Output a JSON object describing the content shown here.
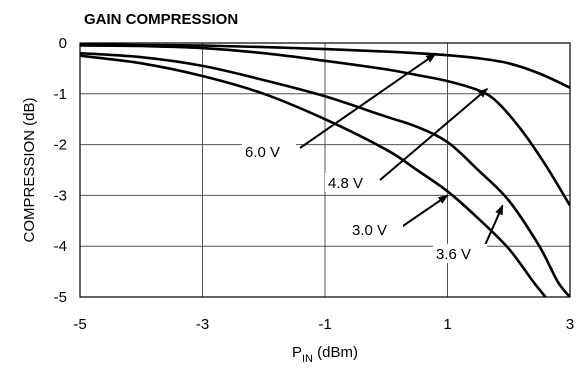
{
  "chart_data": {
    "type": "line",
    "title": "GAIN COMPRESSION",
    "xlabel": {
      "main": "P",
      "sub": "IN",
      "unit": " (dBm)"
    },
    "ylabel": "COMPRESSION (dB)",
    "xlim": [
      -5,
      3
    ],
    "ylim": [
      -5,
      0
    ],
    "xticks": [
      -5,
      -3,
      -1,
      1,
      3
    ],
    "yticks": [
      0,
      -1,
      -2,
      -3,
      -4,
      -5
    ],
    "grid": true,
    "series": [
      {
        "name": "6.0 V",
        "x": [
          -5,
          -4,
          -3,
          -2,
          -1,
          0,
          0.5,
          1,
          1.5,
          2,
          2.5,
          3
        ],
        "y": [
          -0.03,
          -0.04,
          -0.05,
          -0.08,
          -0.12,
          -0.17,
          -0.2,
          -0.24,
          -0.3,
          -0.4,
          -0.6,
          -0.88
        ]
      },
      {
        "name": "4.8 V",
        "x": [
          -5,
          -4,
          -3,
          -2,
          -1,
          0,
          0.5,
          1,
          1.5,
          1.8,
          2.2,
          2.6,
          3
        ],
        "y": [
          -0.05,
          -0.06,
          -0.1,
          -0.2,
          -0.35,
          -0.52,
          -0.63,
          -0.75,
          -0.93,
          -1.15,
          -1.7,
          -2.4,
          -3.2
        ]
      },
      {
        "name": "3.6 V",
        "x": [
          -5,
          -4,
          -3,
          -2,
          -1,
          0,
          0.5,
          1,
          1.5,
          2,
          2.5,
          2.8,
          3
        ],
        "y": [
          -0.2,
          -0.28,
          -0.45,
          -0.73,
          -1.05,
          -1.45,
          -1.65,
          -1.95,
          -2.5,
          -3.1,
          -4.0,
          -4.7,
          -5.0
        ]
      },
      {
        "name": "3.0 V",
        "x": [
          -5,
          -4,
          -3,
          -2,
          -1,
          0,
          0.5,
          1,
          1.5,
          2,
          2.4,
          2.6
        ],
        "y": [
          -0.25,
          -0.4,
          -0.65,
          -1.0,
          -1.5,
          -2.1,
          -2.5,
          -2.92,
          -3.45,
          -4.05,
          -4.7,
          -5.0
        ]
      }
    ],
    "annotations": [
      {
        "text": "6.0 V",
        "arrow_to": [
          0.8,
          -0.22
        ]
      },
      {
        "text": "4.8 V",
        "arrow_to": [
          1.65,
          -0.9
        ]
      },
      {
        "text": "3.0 V",
        "arrow_to": [
          1.0,
          -3.0
        ]
      },
      {
        "text": "3.6 V",
        "arrow_to": [
          1.9,
          -3.2
        ]
      }
    ]
  }
}
